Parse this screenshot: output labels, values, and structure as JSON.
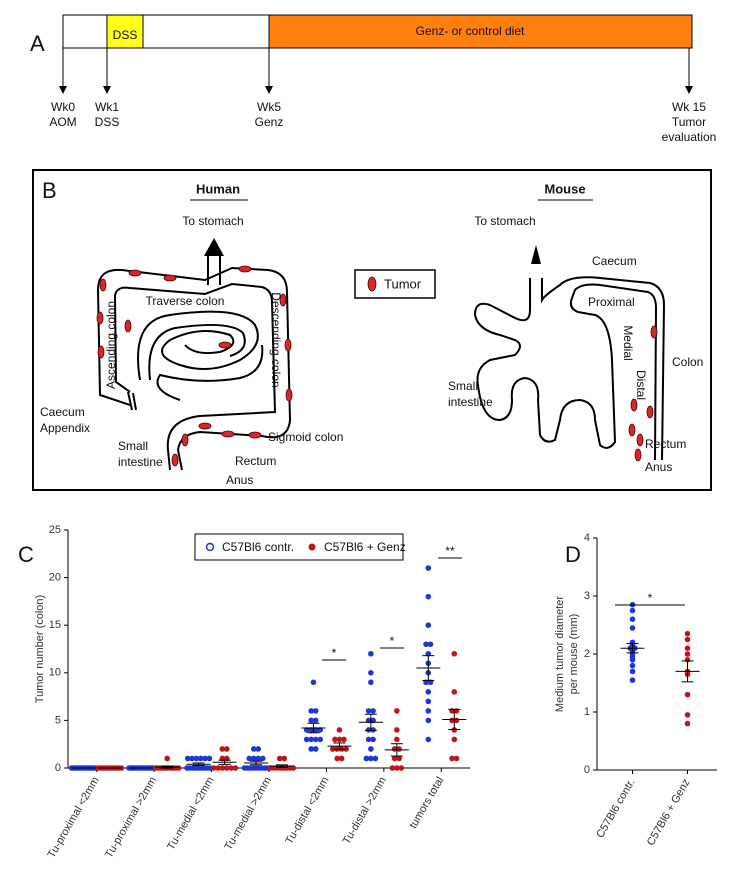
{
  "panel_a": {
    "label": "A",
    "dss": "DSS",
    "diet": "Genz- or control diet",
    "timepoints": [
      [
        "Wk0",
        "AOM"
      ],
      [
        "Wk1",
        "DSS"
      ],
      [
        "Wk5",
        "Genz"
      ],
      [
        "Wk 15",
        "Tumor",
        "evaluation"
      ]
    ]
  },
  "panel_b": {
    "label": "B",
    "legend": "Tumor",
    "human": {
      "title": "Human",
      "to_stomach": "To stomach",
      "traverse": "Traverse colon",
      "ascending": "Ascending colon",
      "descending": "Descending colon",
      "caecum": "Caecum",
      "appendix": "Appendix",
      "small": [
        "Small",
        "intestine"
      ],
      "sigmoid": "Sigmoid colon",
      "rectum": "Rectum",
      "anus": "Anus"
    },
    "mouse": {
      "title": "Mouse",
      "to_stomach": "To stomach",
      "caecum": "Caecum",
      "proximal": "Proximal",
      "medial": "Medial",
      "distal": "Distal",
      "colon": "Colon",
      "small": [
        "Small",
        "intestine"
      ],
      "rectum": "Rectum",
      "anus": "Anus"
    }
  },
  "chart_data": [
    {
      "type": "strip",
      "panel_label": "C",
      "y_label": "Tumor number (colon)",
      "categories": [
        "Tu-proximal <2mm",
        "Tu-proximal >2mm",
        "Tu-medial <2mm",
        "Tu-medial >2mm",
        "Tu-distal <2mm",
        "Tu-distal >2mm",
        "tumors total"
      ],
      "series": [
        {
          "name": "C57Bl6 contr.",
          "color": "#1f35d6",
          "values": [
            [
              0,
              0,
              0,
              0,
              0,
              0,
              0,
              0,
              0,
              0,
              0,
              0,
              0,
              0,
              0
            ],
            [
              0,
              0,
              0,
              0,
              0,
              0,
              0,
              0,
              0,
              0,
              0,
              0,
              0,
              0,
              0
            ],
            [
              1,
              1,
              1,
              1,
              1,
              1,
              0,
              0,
              0,
              0,
              0,
              0,
              0,
              0,
              0
            ],
            [
              2,
              2,
              1,
              1,
              1,
              1,
              0,
              0,
              0,
              0,
              0,
              0,
              0,
              0,
              0
            ],
            [
              9,
              6,
              6,
              5,
              5,
              4,
              4,
              4,
              4,
              3,
              3,
              3,
              3,
              2,
              2
            ],
            [
              12,
              10,
              9,
              6,
              6,
              5,
              5,
              4,
              4,
              3,
              3,
              2,
              1,
              1,
              1
            ],
            [
              21,
              18,
              15,
              13,
              13,
              12,
              11,
              10,
              9,
              9,
              8,
              7,
              6,
              5,
              3
            ]
          ],
          "mean": [
            0,
            0,
            0.4,
            0.53,
            4.2,
            4.8,
            10.5
          ],
          "sem": [
            0,
            0,
            0.13,
            0.19,
            0.5,
            0.85,
            1.3
          ]
        },
        {
          "name": "C57Bl6 + Genz",
          "color": "#c0141c",
          "values": [
            [
              0,
              0,
              0,
              0,
              0,
              0,
              0,
              0,
              0,
              0
            ],
            [
              1,
              0,
              0,
              0,
              0,
              0,
              0,
              0,
              0,
              0
            ],
            [
              2,
              2,
              1,
              1,
              0,
              0,
              0,
              0,
              0,
              0
            ],
            [
              1,
              1,
              0,
              0,
              0,
              0,
              0,
              0,
              0,
              0
            ],
            [
              4,
              3,
              3,
              3,
              2,
              2,
              2,
              2,
              1,
              1
            ],
            [
              6,
              4,
              3,
              2,
              2,
              1,
              1,
              0,
              0,
              0
            ],
            [
              12,
              8,
              6,
              6,
              5,
              5,
              4,
              3,
              1,
              1
            ]
          ],
          "mean": [
            0,
            0.1,
            0.6,
            0.2,
            2.3,
            1.9,
            5.1
          ],
          "sem": [
            0,
            0.1,
            0.22,
            0.13,
            0.33,
            0.65,
            1.05
          ]
        }
      ],
      "ylim": [
        0,
        25
      ],
      "yticks": [
        0,
        5,
        10,
        15,
        20,
        25
      ],
      "annotations": [
        "*",
        "*",
        "**"
      ]
    },
    {
      "type": "strip",
      "panel_label": "D",
      "y_label": [
        "Medium tumor diameter",
        "per mouse (mm)"
      ],
      "categories": [
        "C57Bl6 contr.",
        "C57Bl6 + Genz"
      ],
      "colors": [
        "#1f35d6",
        "#c0141c"
      ],
      "values": [
        [
          2.85,
          2.75,
          2.6,
          2.45,
          2.2,
          2.15,
          2.1,
          2.1,
          2.05,
          2.0,
          1.95,
          1.9,
          1.8,
          1.7,
          1.55
        ],
        [
          2.35,
          2.25,
          2.1,
          2.0,
          1.9,
          1.7,
          1.65,
          1.3,
          0.95,
          0.8
        ]
      ],
      "mean": [
        2.1,
        1.7
      ],
      "sem": [
        0.08,
        0.18
      ],
      "ylim": [
        0,
        4
      ],
      "yticks": [
        0,
        1,
        2,
        3,
        4
      ],
      "annotations": [
        "*"
      ]
    }
  ]
}
